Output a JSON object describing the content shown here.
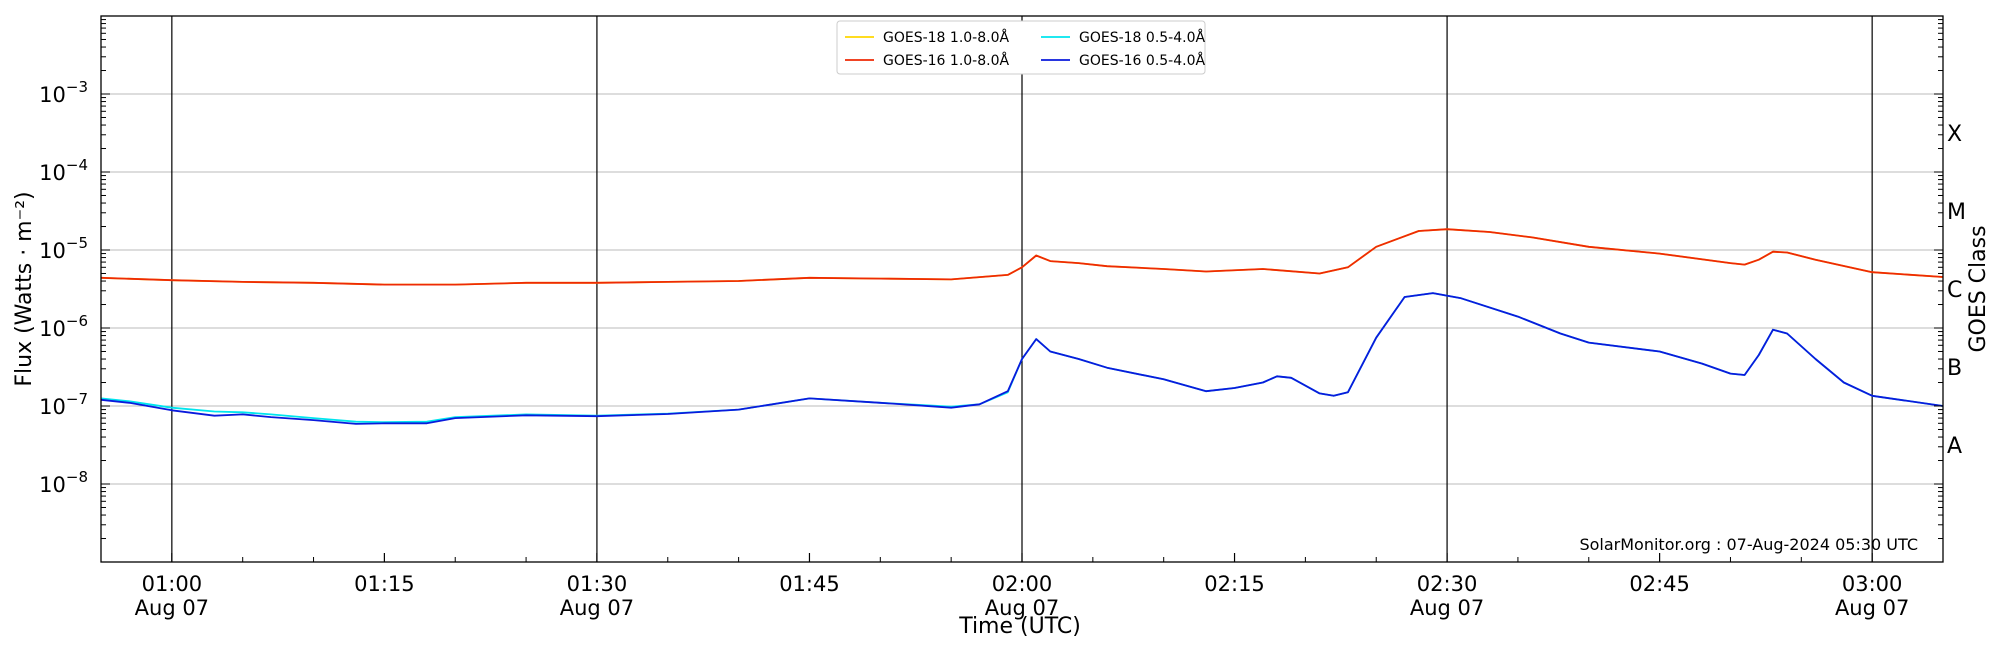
{
  "chart_data": {
    "type": "line",
    "xlabel": "Time (UTC)",
    "ylabel": "Flux (Watts · m⁻²)",
    "y2label": "GOES Class",
    "yscale": "log",
    "ylim": [
      1e-09,
      0.01
    ],
    "xlim": [
      "00:55",
      "03:05"
    ],
    "grid": "horizontal at decades, vertical at half hours",
    "legend_position": "top-center",
    "credit": "SolarMonitor.org : 07-Aug-2024 05:30 UTC",
    "x_ticks": [
      {
        "time": "01:00",
        "label": "01:00",
        "date": "Aug 07"
      },
      {
        "time": "01:15",
        "label": "01:15",
        "date": ""
      },
      {
        "time": "01:30",
        "label": "01:30",
        "date": "Aug 07"
      },
      {
        "time": "01:45",
        "label": "01:45",
        "date": ""
      },
      {
        "time": "02:00",
        "label": "02:00",
        "date": "Aug 07"
      },
      {
        "time": "02:15",
        "label": "02:15",
        "date": ""
      },
      {
        "time": "02:30",
        "label": "02:30",
        "date": "Aug 07"
      },
      {
        "time": "02:45",
        "label": "02:45",
        "date": ""
      },
      {
        "time": "03:00",
        "label": "03:00",
        "date": "Aug 07"
      }
    ],
    "y_ticks": [
      {
        "value": 0.001,
        "mantissa": "10",
        "exponent": "−3"
      },
      {
        "value": 0.0001,
        "mantissa": "10",
        "exponent": "−4"
      },
      {
        "value": 1e-05,
        "mantissa": "10",
        "exponent": "−5"
      },
      {
        "value": 1e-06,
        "mantissa": "10",
        "exponent": "−6"
      },
      {
        "value": 1e-07,
        "mantissa": "10",
        "exponent": "−7"
      },
      {
        "value": 1e-08,
        "mantissa": "10",
        "exponent": "−8"
      }
    ],
    "goes_classes": [
      {
        "label": "X",
        "value": 0.000316
      },
      {
        "label": "M",
        "value": 3.16e-05
      },
      {
        "label": "C",
        "value": 3.16e-06
      },
      {
        "label": "B",
        "value": 3.16e-07
      },
      {
        "label": "A",
        "value": 3.16e-08
      }
    ],
    "series": [
      {
        "name": "GOES-18 1.0-8.0Å",
        "color": "#ffd700",
        "points": [
          [
            "00:55",
            4.4e-06
          ],
          [
            "01:00",
            4.1e-06
          ],
          [
            "01:05",
            3.9e-06
          ],
          [
            "01:10",
            3.8e-06
          ],
          [
            "01:15",
            3.6e-06
          ],
          [
            "01:20",
            3.6e-06
          ],
          [
            "01:25",
            3.8e-06
          ],
          [
            "01:30",
            3.8e-06
          ],
          [
            "01:35",
            3.9e-06
          ],
          [
            "01:40",
            4e-06
          ],
          [
            "01:45",
            4.4e-06
          ],
          [
            "01:50",
            4.3e-06
          ],
          [
            "01:55",
            4.2e-06
          ],
          [
            "01:59",
            4.8e-06
          ],
          [
            "02:00",
            6e-06
          ],
          [
            "02:01",
            8.5e-06
          ],
          [
            "02:02",
            7.2e-06
          ],
          [
            "02:04",
            6.8e-06
          ],
          [
            "02:06",
            6.2e-06
          ],
          [
            "02:10",
            5.7e-06
          ],
          [
            "02:13",
            5.3e-06
          ],
          [
            "02:17",
            5.7e-06
          ],
          [
            "02:21",
            5e-06
          ],
          [
            "02:23",
            6e-06
          ],
          [
            "02:25",
            1.1e-05
          ],
          [
            "02:28",
            1.75e-05
          ],
          [
            "02:30",
            1.85e-05
          ],
          [
            "02:33",
            1.7e-05
          ],
          [
            "02:36",
            1.45e-05
          ],
          [
            "02:40",
            1.1e-05
          ],
          [
            "02:45",
            9e-06
          ],
          [
            "02:50",
            6.8e-06
          ],
          [
            "02:51",
            6.5e-06
          ],
          [
            "02:52",
            7.5e-06
          ],
          [
            "02:53",
            9.5e-06
          ],
          [
            "02:54",
            9.3e-06
          ],
          [
            "02:56",
            7.5e-06
          ],
          [
            "03:00",
            5.2e-06
          ],
          [
            "03:05",
            4.5e-06
          ]
        ]
      },
      {
        "name": "GOES-16 1.0-8.0Å",
        "color": "#ee2a05",
        "points": [
          [
            "00:55",
            4.4e-06
          ],
          [
            "01:00",
            4.1e-06
          ],
          [
            "01:05",
            3.9e-06
          ],
          [
            "01:10",
            3.8e-06
          ],
          [
            "01:15",
            3.6e-06
          ],
          [
            "01:20",
            3.6e-06
          ],
          [
            "01:25",
            3.8e-06
          ],
          [
            "01:30",
            3.8e-06
          ],
          [
            "01:35",
            3.9e-06
          ],
          [
            "01:40",
            4e-06
          ],
          [
            "01:45",
            4.4e-06
          ],
          [
            "01:50",
            4.3e-06
          ],
          [
            "01:55",
            4.2e-06
          ],
          [
            "01:59",
            4.8e-06
          ],
          [
            "02:00",
            6e-06
          ],
          [
            "02:01",
            8.5e-06
          ],
          [
            "02:02",
            7.2e-06
          ],
          [
            "02:04",
            6.8e-06
          ],
          [
            "02:06",
            6.2e-06
          ],
          [
            "02:10",
            5.7e-06
          ],
          [
            "02:13",
            5.3e-06
          ],
          [
            "02:17",
            5.7e-06
          ],
          [
            "02:21",
            5e-06
          ],
          [
            "02:23",
            6e-06
          ],
          [
            "02:25",
            1.1e-05
          ],
          [
            "02:28",
            1.75e-05
          ],
          [
            "02:30",
            1.85e-05
          ],
          [
            "02:33",
            1.7e-05
          ],
          [
            "02:36",
            1.45e-05
          ],
          [
            "02:40",
            1.1e-05
          ],
          [
            "02:45",
            9e-06
          ],
          [
            "02:50",
            6.8e-06
          ],
          [
            "02:51",
            6.5e-06
          ],
          [
            "02:52",
            7.5e-06
          ],
          [
            "02:53",
            9.5e-06
          ],
          [
            "02:54",
            9.3e-06
          ],
          [
            "02:56",
            7.5e-06
          ],
          [
            "03:00",
            5.2e-06
          ],
          [
            "03:05",
            4.5e-06
          ]
        ]
      },
      {
        "name": "GOES-18 0.5-4.0Å",
        "color": "#00e5ee",
        "points": [
          [
            "00:55",
            1.25e-07
          ],
          [
            "00:57",
            1.15e-07
          ],
          [
            "01:00",
            9.5e-08
          ],
          [
            "01:03",
            8.5e-08
          ],
          [
            "01:05",
            8.3e-08
          ],
          [
            "01:07",
            7.8e-08
          ],
          [
            "01:10",
            7e-08
          ],
          [
            "01:13",
            6.3e-08
          ],
          [
            "01:15",
            6.2e-08
          ],
          [
            "01:18",
            6.3e-08
          ],
          [
            "01:20",
            7.2e-08
          ],
          [
            "01:25",
            7.8e-08
          ],
          [
            "01:30",
            7.5e-08
          ],
          [
            "01:35",
            8e-08
          ],
          [
            "01:40",
            9e-08
          ],
          [
            "01:45",
            1.25e-07
          ],
          [
            "01:50",
            1.1e-07
          ],
          [
            "01:55",
            9.8e-08
          ],
          [
            "01:57",
            1.05e-07
          ],
          [
            "01:59",
            1.5e-07
          ],
          [
            "02:00",
            4e-07
          ],
          [
            "02:01",
            7.2e-07
          ],
          [
            "02:02",
            5e-07
          ],
          [
            "02:04",
            4e-07
          ],
          [
            "02:06",
            3.1e-07
          ],
          [
            "02:10",
            2.2e-07
          ],
          [
            "02:13",
            1.55e-07
          ],
          [
            "02:15",
            1.7e-07
          ],
          [
            "02:17",
            2e-07
          ],
          [
            "02:18",
            2.4e-07
          ],
          [
            "02:19",
            2.3e-07
          ],
          [
            "02:21",
            1.45e-07
          ],
          [
            "02:22",
            1.35e-07
          ],
          [
            "02:23",
            1.5e-07
          ],
          [
            "02:25",
            7.5e-07
          ],
          [
            "02:27",
            2.5e-06
          ],
          [
            "02:29",
            2.8e-06
          ],
          [
            "02:31",
            2.4e-06
          ],
          [
            "02:35",
            1.4e-06
          ],
          [
            "02:38",
            8.5e-07
          ],
          [
            "02:40",
            6.5e-07
          ],
          [
            "02:45",
            5e-07
          ],
          [
            "02:48",
            3.5e-07
          ],
          [
            "02:50",
            2.6e-07
          ],
          [
            "02:51",
            2.5e-07
          ],
          [
            "02:52",
            4.5e-07
          ],
          [
            "02:53",
            9.5e-07
          ],
          [
            "02:54",
            8.5e-07
          ],
          [
            "02:56",
            4e-07
          ],
          [
            "02:58",
            2e-07
          ],
          [
            "03:00",
            1.35e-07
          ],
          [
            "03:05",
            1e-07
          ]
        ]
      },
      {
        "name": "GOES-16 0.5-4.0Å",
        "color": "#0a1adc",
        "points": [
          [
            "00:55",
            1.2e-07
          ],
          [
            "00:57",
            1.1e-07
          ],
          [
            "01:00",
            8.8e-08
          ],
          [
            "01:03",
            7.5e-08
          ],
          [
            "01:05",
            7.8e-08
          ],
          [
            "01:07",
            7.2e-08
          ],
          [
            "01:10",
            6.6e-08
          ],
          [
            "01:13",
            5.9e-08
          ],
          [
            "01:15",
            6e-08
          ],
          [
            "01:18",
            6e-08
          ],
          [
            "01:20",
            7e-08
          ],
          [
            "01:25",
            7.6e-08
          ],
          [
            "01:30",
            7.4e-08
          ],
          [
            "01:35",
            7.9e-08
          ],
          [
            "01:40",
            9e-08
          ],
          [
            "01:45",
            1.25e-07
          ],
          [
            "01:50",
            1.1e-07
          ],
          [
            "01:55",
            9.5e-08
          ],
          [
            "01:57",
            1.05e-07
          ],
          [
            "01:59",
            1.55e-07
          ],
          [
            "02:00",
            4e-07
          ],
          [
            "02:01",
            7.2e-07
          ],
          [
            "02:02",
            5e-07
          ],
          [
            "02:04",
            4e-07
          ],
          [
            "02:06",
            3.1e-07
          ],
          [
            "02:10",
            2.2e-07
          ],
          [
            "02:13",
            1.55e-07
          ],
          [
            "02:15",
            1.7e-07
          ],
          [
            "02:17",
            2e-07
          ],
          [
            "02:18",
            2.4e-07
          ],
          [
            "02:19",
            2.3e-07
          ],
          [
            "02:21",
            1.45e-07
          ],
          [
            "02:22",
            1.35e-07
          ],
          [
            "02:23",
            1.5e-07
          ],
          [
            "02:25",
            7.5e-07
          ],
          [
            "02:27",
            2.5e-06
          ],
          [
            "02:29",
            2.8e-06
          ],
          [
            "02:31",
            2.4e-06
          ],
          [
            "02:35",
            1.4e-06
          ],
          [
            "02:38",
            8.5e-07
          ],
          [
            "02:40",
            6.5e-07
          ],
          [
            "02:45",
            5e-07
          ],
          [
            "02:48",
            3.5e-07
          ],
          [
            "02:50",
            2.6e-07
          ],
          [
            "02:51",
            2.5e-07
          ],
          [
            "02:52",
            4.5e-07
          ],
          [
            "02:53",
            9.5e-07
          ],
          [
            "02:54",
            8.5e-07
          ],
          [
            "02:56",
            4e-07
          ],
          [
            "02:58",
            2e-07
          ],
          [
            "03:00",
            1.35e-07
          ],
          [
            "03:05",
            1e-07
          ]
        ]
      }
    ],
    "legend_order": [
      0,
      2,
      1,
      3
    ]
  }
}
